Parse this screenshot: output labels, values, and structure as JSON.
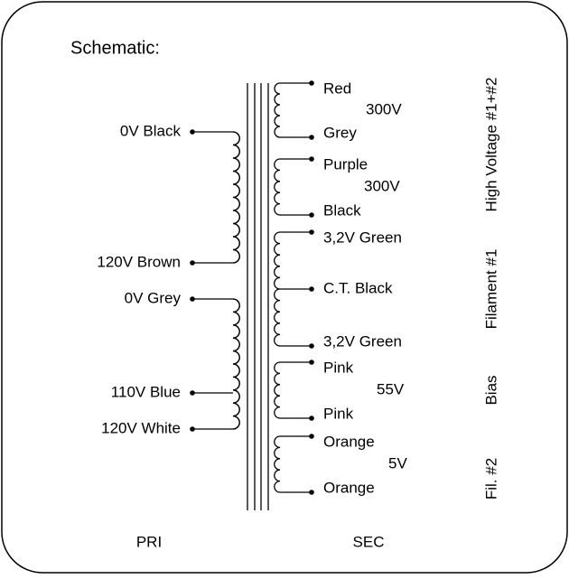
{
  "title": "Schematic:",
  "primary": [
    "0V Black",
    "120V Brown",
    "0V Grey",
    "110V Blue",
    "120V White"
  ],
  "secondary": [
    {
      "top": "Red",
      "bottom": "Grey",
      "voltage": "300V"
    },
    {
      "top": "Purple",
      "bottom": "Black",
      "voltage": "300V"
    },
    {
      "top": "3,2V Green",
      "tap": "C.T. Black",
      "bottom": "3,2V Green"
    },
    {
      "top": "Pink",
      "bottom": "Pink",
      "voltage": "55V"
    },
    {
      "top": "Orange",
      "bottom": "Orange",
      "voltage": "5V"
    }
  ],
  "groups": [
    "High Voltage #1+#2",
    "Filament #1",
    "Bias",
    "Fil. #2"
  ],
  "footer": {
    "primary": "PRI",
    "secondary": "SEC"
  }
}
